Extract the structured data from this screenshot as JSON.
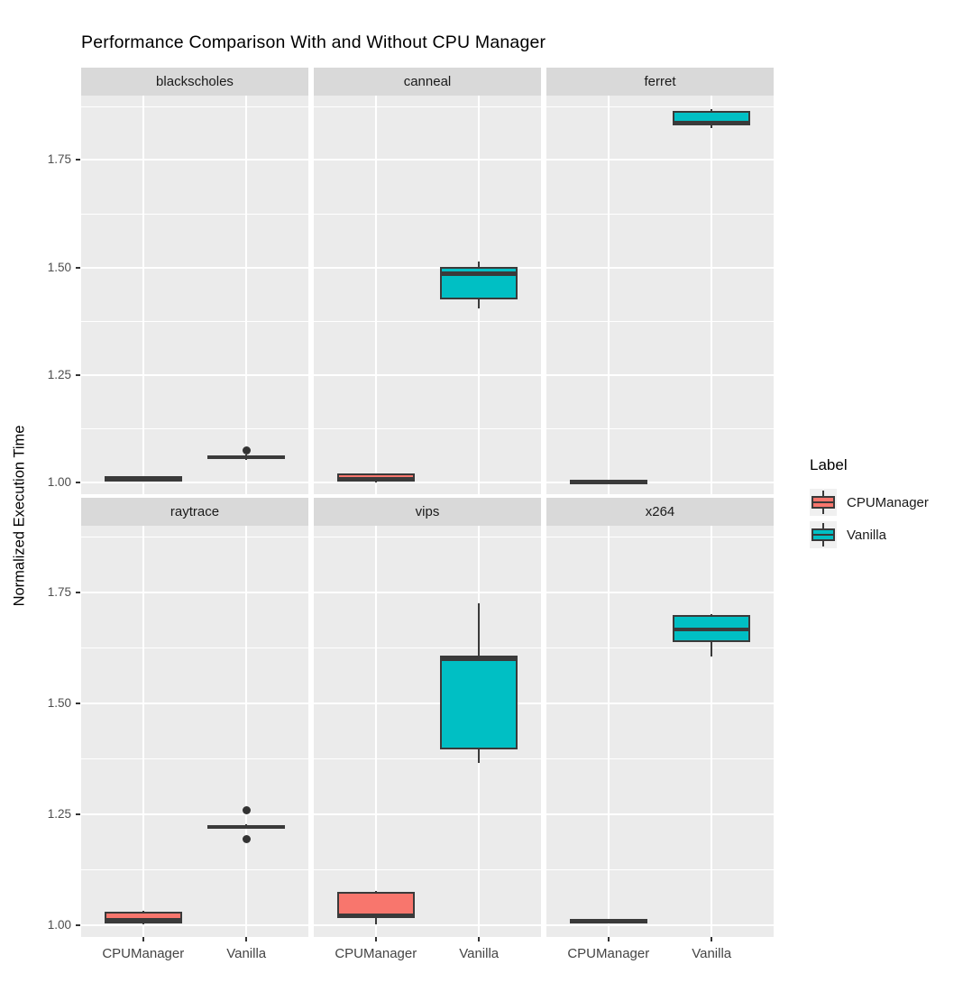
{
  "chart_data": {
    "type": "boxplot",
    "title": "Performance Comparison With and Without CPU Manager",
    "ylabel": "Normalized Execution Time",
    "x_categories": [
      "CPUManager",
      "Vanilla"
    ],
    "y_ticks": [
      {
        "label": "1.00",
        "value": 1.0
      },
      {
        "label": "1.25",
        "value": 1.25
      },
      {
        "label": "1.50",
        "value": 1.5
      },
      {
        "label": "1.75",
        "value": 1.75
      }
    ],
    "y_minor": [
      1.125,
      1.375,
      1.625,
      1.875
    ],
    "ylim": [
      0.973,
      1.9
    ],
    "grid": "on",
    "legend": {
      "title": "Label",
      "position": "right",
      "entries": [
        {
          "label": "CPUManager",
          "color": "#F8766D"
        },
        {
          "label": "Vanilla",
          "color": "#00BFC4"
        }
      ]
    },
    "facets": [
      {
        "name": "blackscholes",
        "boxes": [
          {
            "group": "CPUManager",
            "whisker_low": 1.004,
            "q1": 1.006,
            "median": 1.009,
            "q3": 1.011,
            "whisker_high": 1.013,
            "outliers": []
          },
          {
            "group": "Vanilla",
            "whisker_low": 1.052,
            "q1": 1.056,
            "median": 1.059,
            "q3": 1.062,
            "whisker_high": 1.065,
            "outliers": [
              1.075
            ]
          }
        ]
      },
      {
        "name": "canneal",
        "boxes": [
          {
            "group": "CPUManager",
            "whisker_low": 1.001,
            "q1": 1.003,
            "median": 1.007,
            "q3": 1.02,
            "whisker_high": 1.022,
            "outliers": []
          },
          {
            "group": "Vanilla",
            "whisker_low": 1.405,
            "q1": 1.426,
            "median": 1.486,
            "q3": 1.502,
            "whisker_high": 1.514,
            "outliers": []
          }
        ]
      },
      {
        "name": "ferret",
        "boxes": [
          {
            "group": "CPUManager",
            "whisker_low": 0.999,
            "q1": 1.0,
            "median": 1.002,
            "q3": 1.004,
            "whisker_high": 1.005,
            "outliers": []
          },
          {
            "group": "Vanilla",
            "whisker_low": 1.824,
            "q1": 1.83,
            "median": 1.836,
            "q3": 1.865,
            "whisker_high": 1.868,
            "outliers": []
          }
        ]
      },
      {
        "name": "raytrace",
        "boxes": [
          {
            "group": "CPUManager",
            "whisker_low": 1.001,
            "q1": 1.004,
            "median": 1.011,
            "q3": 1.03,
            "whisker_high": 1.032,
            "outliers": []
          },
          {
            "group": "Vanilla",
            "whisker_low": 1.216,
            "q1": 1.218,
            "median": 1.221,
            "q3": 1.224,
            "whisker_high": 1.226,
            "outliers": [
              1.259,
              1.194
            ]
          }
        ]
      },
      {
        "name": "vips",
        "boxes": [
          {
            "group": "CPUManager",
            "whisker_low": 1.002,
            "q1": 1.016,
            "median": 1.022,
            "q3": 1.074,
            "whisker_high": 1.076,
            "outliers": []
          },
          {
            "group": "Vanilla",
            "whisker_low": 1.366,
            "q1": 1.396,
            "median": 1.599,
            "q3": 1.607,
            "whisker_high": 1.726,
            "outliers": []
          }
        ]
      },
      {
        "name": "x264",
        "boxes": [
          {
            "group": "CPUManager",
            "whisker_low": 1.003,
            "q1": 1.006,
            "median": 1.009,
            "q3": 1.012,
            "whisker_high": 1.014,
            "outliers": []
          },
          {
            "group": "Vanilla",
            "whisker_low": 1.606,
            "q1": 1.637,
            "median": 1.666,
            "q3": 1.698,
            "whisker_high": 1.701,
            "outliers": []
          }
        ]
      }
    ],
    "colors": {
      "panel_background": "#EBEBEB",
      "strip_background": "#D9D9D9",
      "gridline": "#FFFFFF",
      "box_outline": "#3A3A3A",
      "outlier": "#333333",
      "axis_text": "#4D4D4D"
    }
  }
}
